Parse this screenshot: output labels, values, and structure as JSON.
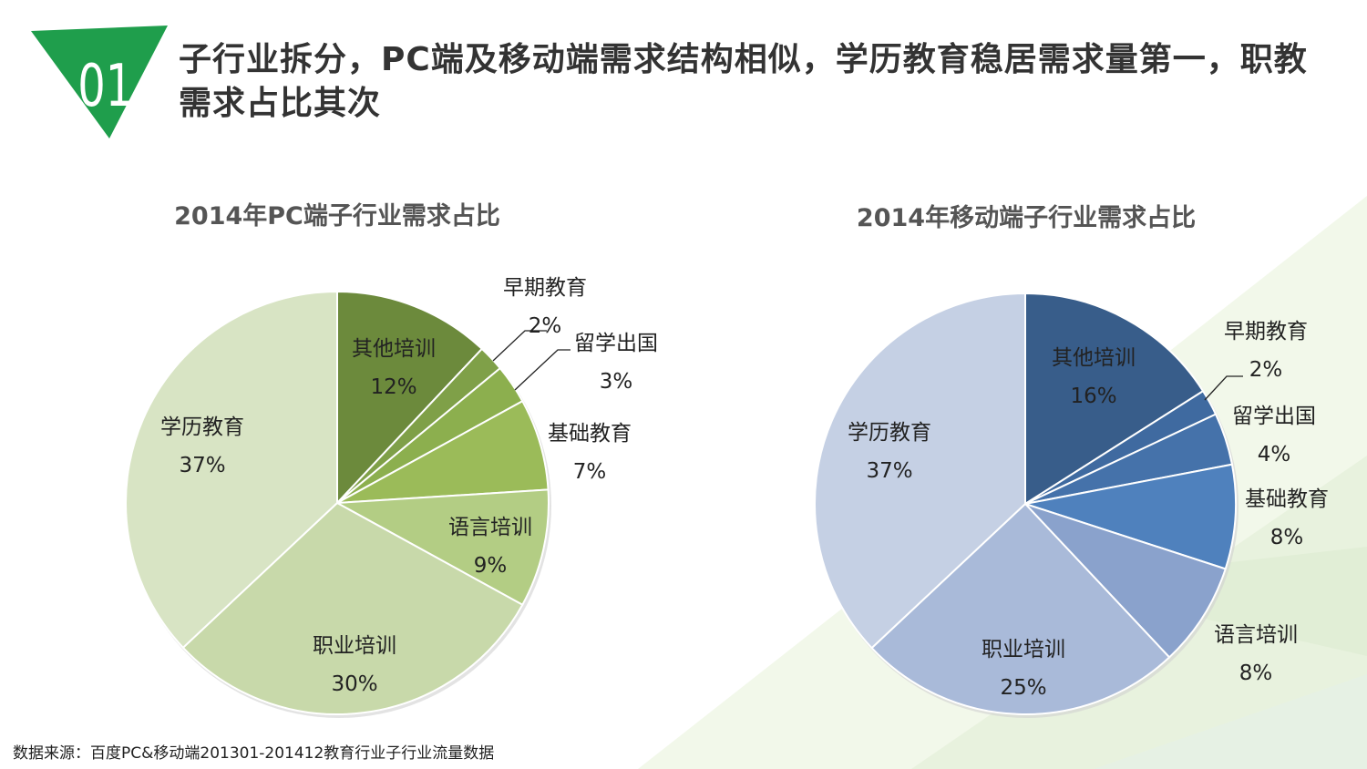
{
  "header": {
    "badge_number": "01",
    "title": "子行业拆分，PC端及移动端需求结构相似，学历教育稳居需求量第一，职教需求占比其次"
  },
  "source": "数据来源：百度PC&移动端201301-201412教育行业子行业流量数据",
  "colors": {
    "badge": "#1f9e4c",
    "bg_triangle_light": "#eef5e4",
    "bg_triangle_mid": "#e4f0dc"
  },
  "chart_data": [
    {
      "id": "pc",
      "type": "pie",
      "title": "2014年PC端子行业需求占比",
      "categories": [
        "其他培训",
        "早期教育",
        "留学出国",
        "基础教育",
        "语言培训",
        "职业培训",
        "学历教育"
      ],
      "values": [
        12,
        2,
        3,
        7,
        9,
        30,
        37
      ],
      "labels": [
        "12%",
        "2%",
        "3%",
        "7%",
        "9%",
        "30%",
        "37%"
      ],
      "colors": [
        "#6c8a3c",
        "#7fa048",
        "#8caf4e",
        "#9bbb59",
        "#b3cd84",
        "#c8d9aa",
        "#d8e4c4"
      ],
      "start_angle": "12 o'clock",
      "direction": "clockwise"
    },
    {
      "id": "mobile",
      "type": "pie",
      "title": "2014年移动端子行业需求占比",
      "categories": [
        "其他培训",
        "早期教育",
        "留学出国",
        "基础教育",
        "语言培训",
        "职业培训",
        "学历教育"
      ],
      "values": [
        16,
        2,
        4,
        8,
        8,
        25,
        37
      ],
      "labels": [
        "16%",
        "2%",
        "4%",
        "8%",
        "8%",
        "25%",
        "37%"
      ],
      "colors": [
        "#385d8a",
        "#3f6aa0",
        "#4572aa",
        "#4f81bd",
        "#8aa2cc",
        "#a9bad9",
        "#c5d0e4"
      ],
      "start_angle": "12 o'clock",
      "direction": "clockwise"
    }
  ]
}
